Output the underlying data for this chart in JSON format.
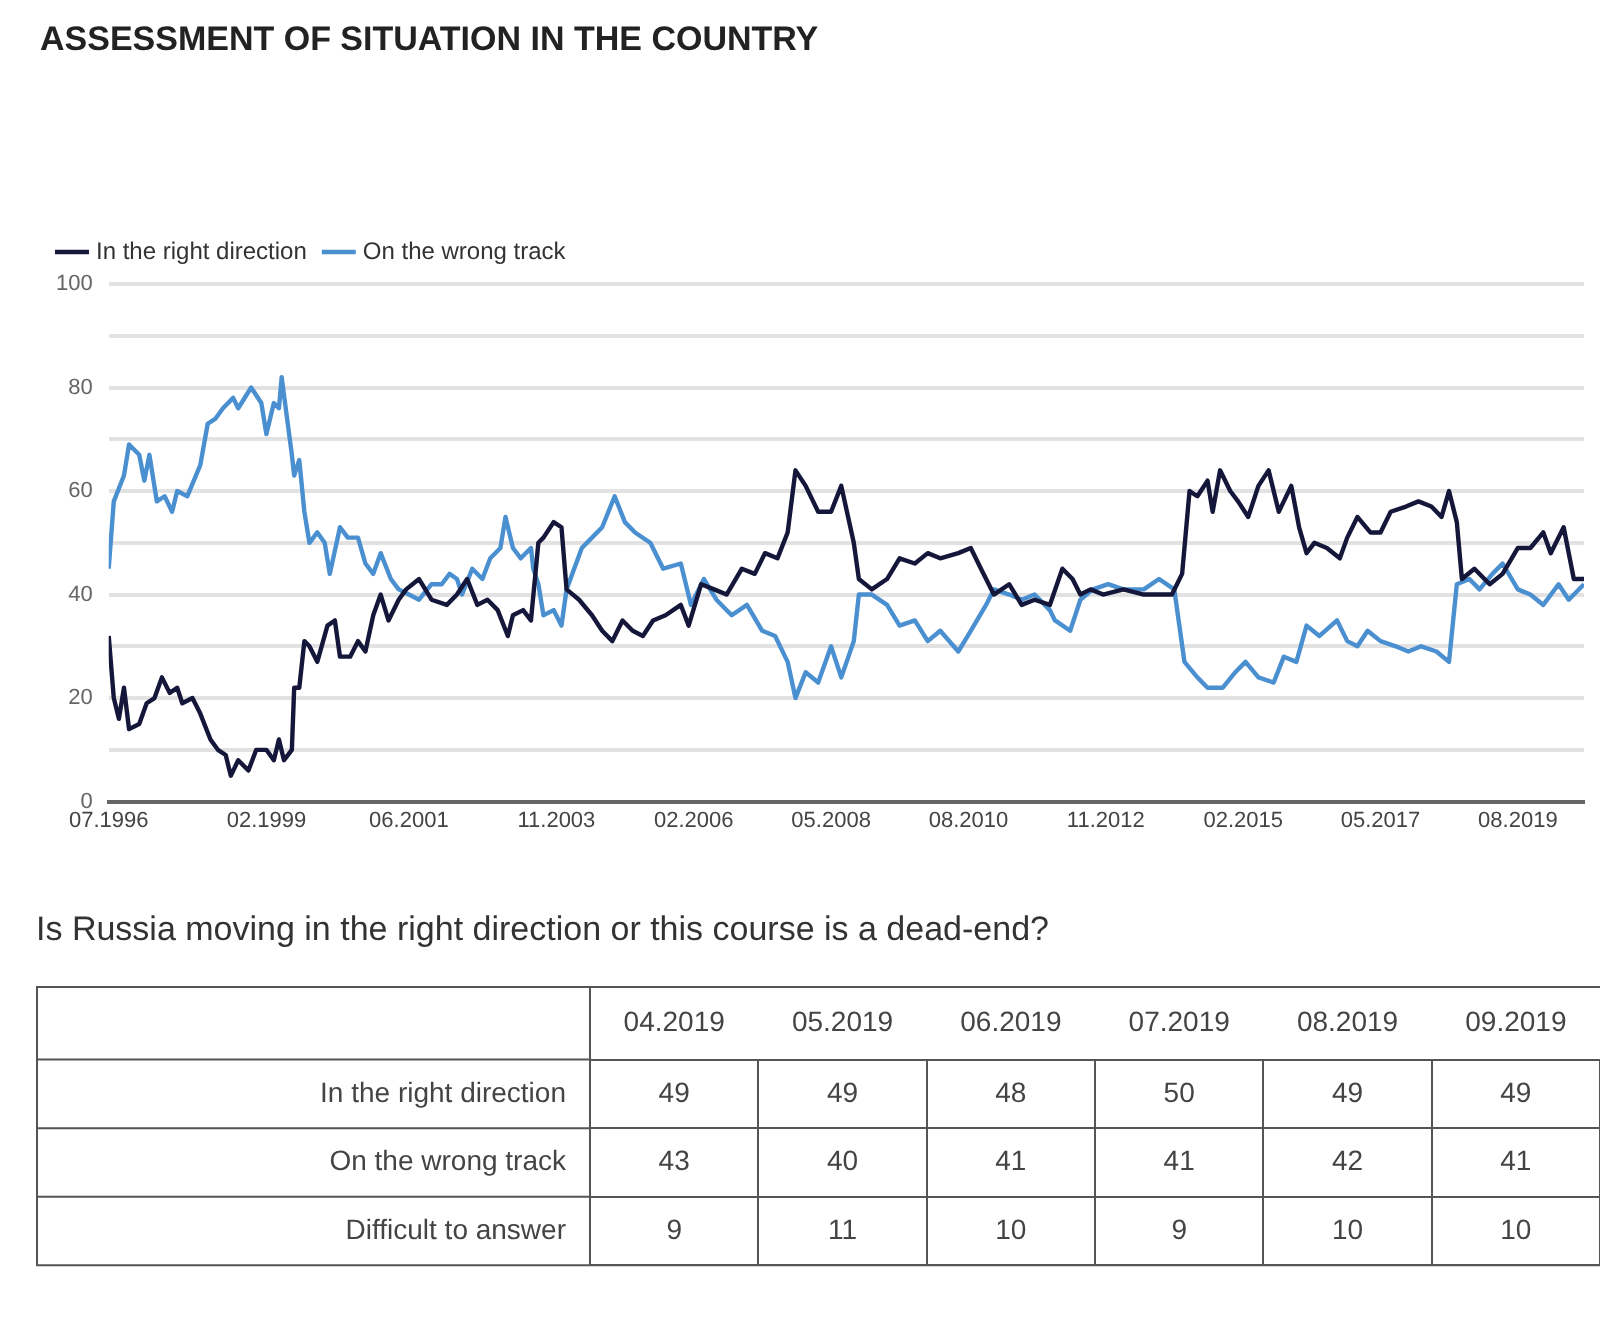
{
  "chart_data": [
    {
      "type": "line",
      "title": "ASSESSMENT OF SITUATION IN THE COUNTRY",
      "legend": "top left",
      "grid": "y",
      "marker": "none",
      "xlim": [
        "1996-07",
        "2020-09"
      ],
      "xticks": [
        {
          "value": "1996-07",
          "label": "07.1996"
        },
        {
          "value": "1999-02",
          "label": "02.1999"
        },
        {
          "value": "2001-06",
          "label": "06.2001"
        },
        {
          "value": "2003-11",
          "label": "11.2003"
        },
        {
          "value": "2006-02",
          "label": "02.2006"
        },
        {
          "value": "2008-05",
          "label": "05.2008"
        },
        {
          "value": "2010-08",
          "label": "08.2010"
        },
        {
          "value": "2012-11",
          "label": "11.2012"
        },
        {
          "value": "2015-02",
          "label": "02.2015"
        },
        {
          "value": "2017-05",
          "label": "05.2017"
        },
        {
          "value": "2019-08",
          "label": "08.2019"
        }
      ],
      "ylim": [
        0,
        100
      ],
      "yticks": [
        0,
        {
          "value": 10,
          "label": null
        },
        20,
        {
          "value": 30,
          "label": null
        },
        40,
        {
          "value": 50,
          "label": null
        },
        60,
        {
          "value": 70,
          "label": null
        },
        80,
        {
          "value": 90,
          "label": null
        },
        100
      ],
      "series": [
        {
          "name": "In the right direction",
          "color": "#14163a",
          "x": [
            "1996-07-01",
            "1996-08-01",
            "1996-09-01",
            "1996-10-01",
            "1996-11-01",
            "1997-01-01",
            "1997-02-15",
            "1997-04-01",
            "1997-05-15",
            "1997-07-01",
            "1997-08-15",
            "1997-09-15",
            "1997-11-15",
            "1998-01-01",
            "1998-03-01",
            "1998-04-15",
            "1998-06-01",
            "1998-07-01",
            "1998-08-15",
            "1998-10-15",
            "1998-12-01",
            "1999-02-01",
            "1999-03-15",
            "1999-04-15",
            "1999-05-15",
            "1999-07-01",
            "1999-07-15",
            "1999-08-15",
            "1999-09-15",
            "1999-10-15",
            "1999-12-01",
            "2000-02-01",
            "2000-03-15",
            "2000-04-15",
            "2000-06-15",
            "2000-08-01",
            "2000-09-15",
            "2000-11-01",
            "2000-12-15",
            "2001-02-01",
            "2001-04-01",
            "2001-05-15",
            "2001-08-01",
            "2001-10-15",
            "2002-01-15",
            "2002-03-15",
            "2002-05-15",
            "2002-07-15",
            "2002-09-15",
            "2002-11-15",
            "2003-01-15",
            "2003-02-15",
            "2003-04-15",
            "2003-06-01",
            "2003-07-15",
            "2003-08-15",
            "2003-10-15",
            "2003-12-01",
            "2004-01-01",
            "2004-03-15",
            "2004-06-01",
            "2004-08-01",
            "2004-10-01",
            "2004-12-01",
            "2005-02-01",
            "2005-04-01",
            "2005-06-01",
            "2005-08-15",
            "2005-11-15",
            "2006-01-01",
            "2006-03-15",
            "2006-06-01",
            "2006-08-15",
            "2006-11-15",
            "2007-02-01",
            "2007-04-01",
            "2007-06-15",
            "2007-08-15",
            "2007-10-01",
            "2007-12-01",
            "2008-02-15",
            "2008-05-01",
            "2008-07-01",
            "2008-09-15",
            "2008-10-15",
            "2009-01-01",
            "2009-04-01",
            "2009-06-15",
            "2009-09-15",
            "2009-12-01",
            "2010-02-15",
            "2010-06-01",
            "2010-08-15",
            "2010-10-15",
            "2011-01-01",
            "2011-04-01",
            "2011-06-15",
            "2011-09-01",
            "2011-12-01",
            "2012-02-15",
            "2012-04-15",
            "2012-06-01",
            "2012-08-01",
            "2012-10-15",
            "2013-02-15",
            "2013-06-15",
            "2013-12-01",
            "2014-02-01",
            "2014-03-15",
            "2014-05-01",
            "2014-07-01",
            "2014-08-01",
            "2014-09-15",
            "2014-11-15",
            "2015-01-01",
            "2015-03-01",
            "2015-05-01",
            "2015-07-01",
            "2015-09-01",
            "2015-11-15",
            "2016-01-01",
            "2016-02-15",
            "2016-04-01",
            "2016-06-15",
            "2016-09-01",
            "2016-10-15",
            "2016-12-15",
            "2017-03-01",
            "2017-05-01",
            "2017-07-01",
            "2017-10-01",
            "2017-12-15",
            "2018-03-01",
            "2018-05-01",
            "2018-06-15",
            "2018-08-01",
            "2018-09-01",
            "2018-11-15",
            "2019-02-15",
            "2019-05-01",
            "2019-08-01",
            "2019-10-15",
            "2020-01-01",
            "2020-02-15",
            "2020-05-01",
            "2020-07-01",
            "2020-09-01"
          ],
          "values": [
            32,
            20,
            16,
            22,
            14,
            15,
            19,
            20,
            24,
            21,
            22,
            19,
            20,
            17,
            12,
            10,
            9,
            5,
            8,
            6,
            10,
            10,
            8,
            12,
            8,
            10,
            22,
            22,
            31,
            30,
            27,
            34,
            35,
            28,
            28,
            31,
            29,
            36,
            40,
            35,
            39,
            41,
            43,
            39,
            38,
            40,
            43,
            38,
            39,
            37,
            32,
            36,
            37,
            35,
            50,
            51,
            54,
            53,
            41,
            39,
            36,
            33,
            31,
            35,
            33,
            32,
            35,
            36,
            38,
            34,
            42,
            41,
            40,
            45,
            44,
            48,
            47,
            52,
            64,
            61,
            56,
            56,
            61,
            50,
            43,
            41,
            43,
            47,
            46,
            48,
            47,
            48,
            49,
            45,
            40,
            42,
            38,
            39,
            38,
            45,
            43,
            40,
            41,
            40,
            41,
            40,
            40,
            44,
            60,
            59,
            62,
            56,
            64,
            60,
            58,
            55,
            61,
            64,
            56,
            61,
            53,
            48,
            50,
            49,
            47,
            51,
            55,
            52,
            52,
            56,
            57,
            58,
            57,
            55,
            60,
            54,
            43,
            45,
            42,
            44,
            49,
            49,
            52,
            48,
            53,
            43,
            43
          ]
        },
        {
          "name": "On the wrong track",
          "color": "#4a8fd0",
          "x": [
            "1996-07-01",
            "1996-08-01",
            "1996-10-01",
            "1996-11-01",
            "1997-01-01",
            "1997-02-01",
            "1997-03-01",
            "1997-04-15",
            "1997-06-01",
            "1997-07-15",
            "1997-08-15",
            "1997-10-15",
            "1998-01-01",
            "1998-02-15",
            "1998-04-01",
            "1998-05-15",
            "1998-07-15",
            "1998-08-15",
            "1998-11-01",
            "1999-01-01",
            "1999-02-01",
            "1999-03-15",
            "1999-04-15",
            "1999-05-01",
            "1999-07-01",
            "1999-07-15",
            "1999-08-15",
            "1999-09-15",
            "1999-10-15",
            "1999-12-01",
            "2000-01-15",
            "2000-02-15",
            "2000-04-15",
            "2000-06-01",
            "2000-08-01",
            "2000-09-15",
            "2000-11-01",
            "2000-12-15",
            "2001-02-15",
            "2001-04-01",
            "2001-06-01",
            "2001-08-01",
            "2001-10-15",
            "2001-12-15",
            "2002-02-01",
            "2002-03-15",
            "2002-04-15",
            "2002-06-15",
            "2002-08-15",
            "2002-10-01",
            "2002-12-01",
            "2003-01-01",
            "2003-02-15",
            "2003-04-01",
            "2003-06-01",
            "2003-06-15",
            "2003-07-15",
            "2003-08-15",
            "2003-10-15",
            "2003-12-01",
            "2004-01-01",
            "2004-04-01",
            "2004-06-01",
            "2004-08-01",
            "2004-10-15",
            "2004-12-15",
            "2005-02-15",
            "2005-05-15",
            "2005-08-01",
            "2005-11-15",
            "2006-01-15",
            "2006-04-01",
            "2006-06-15",
            "2006-09-15",
            "2006-12-15",
            "2007-03-15",
            "2007-06-01",
            "2007-08-15",
            "2007-10-01",
            "2007-12-01",
            "2008-02-15",
            "2008-05-01",
            "2008-07-01",
            "2008-09-15",
            "2008-10-15",
            "2009-01-01",
            "2009-04-01",
            "2009-06-15",
            "2009-09-15",
            "2009-12-01",
            "2010-02-15",
            "2010-06-01",
            "2010-08-15",
            "2010-11-15",
            "2011-01-01",
            "2011-04-01",
            "2011-06-15",
            "2011-09-01",
            "2011-12-01",
            "2012-01-01",
            "2012-04-01",
            "2012-06-01",
            "2012-08-15",
            "2012-11-15",
            "2013-02-15",
            "2013-06-15",
            "2013-09-15",
            "2013-12-15",
            "2014-02-15",
            "2014-05-01",
            "2014-07-01",
            "2014-10-01",
            "2014-12-15",
            "2015-02-15",
            "2015-05-01",
            "2015-08-01",
            "2015-10-01",
            "2015-12-15",
            "2016-02-15",
            "2016-05-01",
            "2016-08-15",
            "2016-10-15",
            "2016-12-15",
            "2017-02-15",
            "2017-05-01",
            "2017-08-01",
            "2017-10-15",
            "2018-01-01",
            "2018-04-01",
            "2018-06-15",
            "2018-08-01",
            "2018-10-15",
            "2018-12-15",
            "2019-03-01",
            "2019-05-01",
            "2019-08-01",
            "2019-10-15",
            "2020-01-01",
            "2020-04-01",
            "2020-06-01",
            "2020-09-01"
          ],
          "values": [
            45,
            58,
            63,
            69,
            67,
            62,
            67,
            58,
            59,
            56,
            60,
            59,
            65,
            73,
            74,
            76,
            78,
            76,
            80,
            77,
            71,
            77,
            76,
            82,
            67,
            63,
            66,
            56,
            50,
            52,
            50,
            44,
            53,
            51,
            51,
            46,
            44,
            48,
            43,
            41,
            40,
            39,
            42,
            42,
            44,
            43,
            40,
            45,
            43,
            47,
            49,
            55,
            49,
            47,
            49,
            45,
            42,
            36,
            37,
            34,
            41,
            49,
            51,
            53,
            59,
            54,
            52,
            50,
            45,
            46,
            38,
            43,
            39,
            36,
            38,
            33,
            32,
            27,
            20,
            25,
            23,
            30,
            24,
            31,
            40,
            40,
            38,
            34,
            35,
            31,
            33,
            29,
            33,
            38,
            41,
            40,
            39,
            40,
            37,
            35,
            33,
            39,
            41,
            42,
            41,
            41,
            43,
            41,
            27,
            24,
            22,
            22,
            25,
            27,
            24,
            23,
            28,
            27,
            34,
            32,
            35,
            31,
            30,
            33,
            31,
            30,
            29,
            30,
            29,
            27,
            42,
            43,
            41,
            44,
            46,
            41,
            40,
            38,
            42,
            39,
            42
          ]
        }
      ]
    },
    {
      "type": "heatmap",
      "title": "Is Russia moving in the right direction or this course is a dead-end?",
      "data_labels": true,
      "categories": [
        "04.2019",
        "05.2019",
        "06.2019",
        "07.2019",
        "08.2019",
        "09.2019"
      ],
      "y_categories": [
        "In the right direction",
        "On the wrong track",
        "Difficult to answer"
      ],
      "cells": [
        [
          49,
          49,
          48,
          50,
          49,
          49
        ],
        [
          43,
          40,
          41,
          41,
          42,
          41
        ],
        [
          9,
          11,
          10,
          9,
          10,
          10
        ]
      ]
    }
  ]
}
